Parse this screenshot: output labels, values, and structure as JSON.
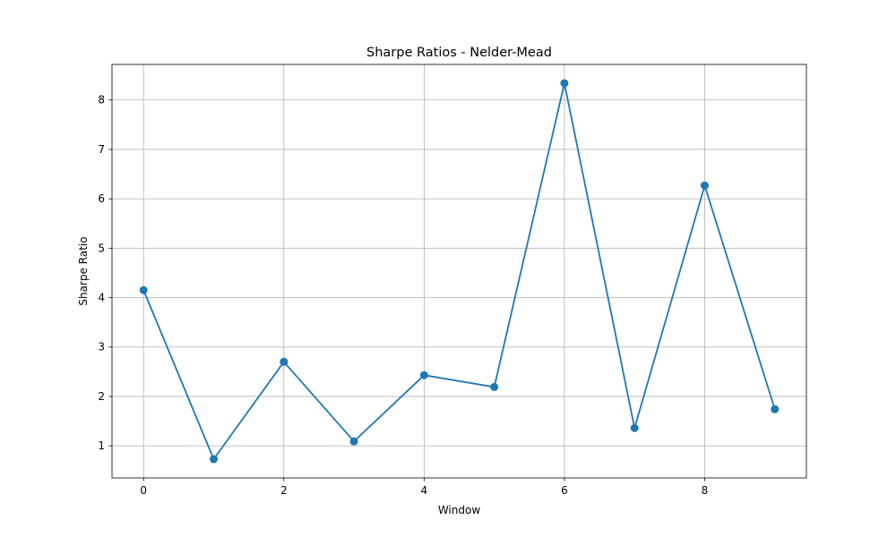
{
  "chart_data": {
    "type": "line",
    "title": "Sharpe Ratios - Nelder-Mead",
    "xlabel": "Window",
    "ylabel": "Sharpe Ratio",
    "x": [
      0,
      1,
      2,
      3,
      4,
      5,
      6,
      7,
      8,
      9
    ],
    "series": [
      {
        "values": [
          4.15,
          0.73,
          2.7,
          1.09,
          2.43,
          2.19,
          8.34,
          1.36,
          6.27,
          1.74
        ],
        "color": "#1f77b4",
        "marker": "circle"
      }
    ],
    "xlim": [
      -0.45,
      9.45
    ],
    "ylim": [
      0.35,
      8.72
    ],
    "xticks": [
      0,
      2,
      4,
      6,
      8
    ],
    "yticks": [
      1,
      2,
      3,
      4,
      5,
      6,
      7,
      8
    ],
    "grid": true,
    "legend": "none"
  }
}
